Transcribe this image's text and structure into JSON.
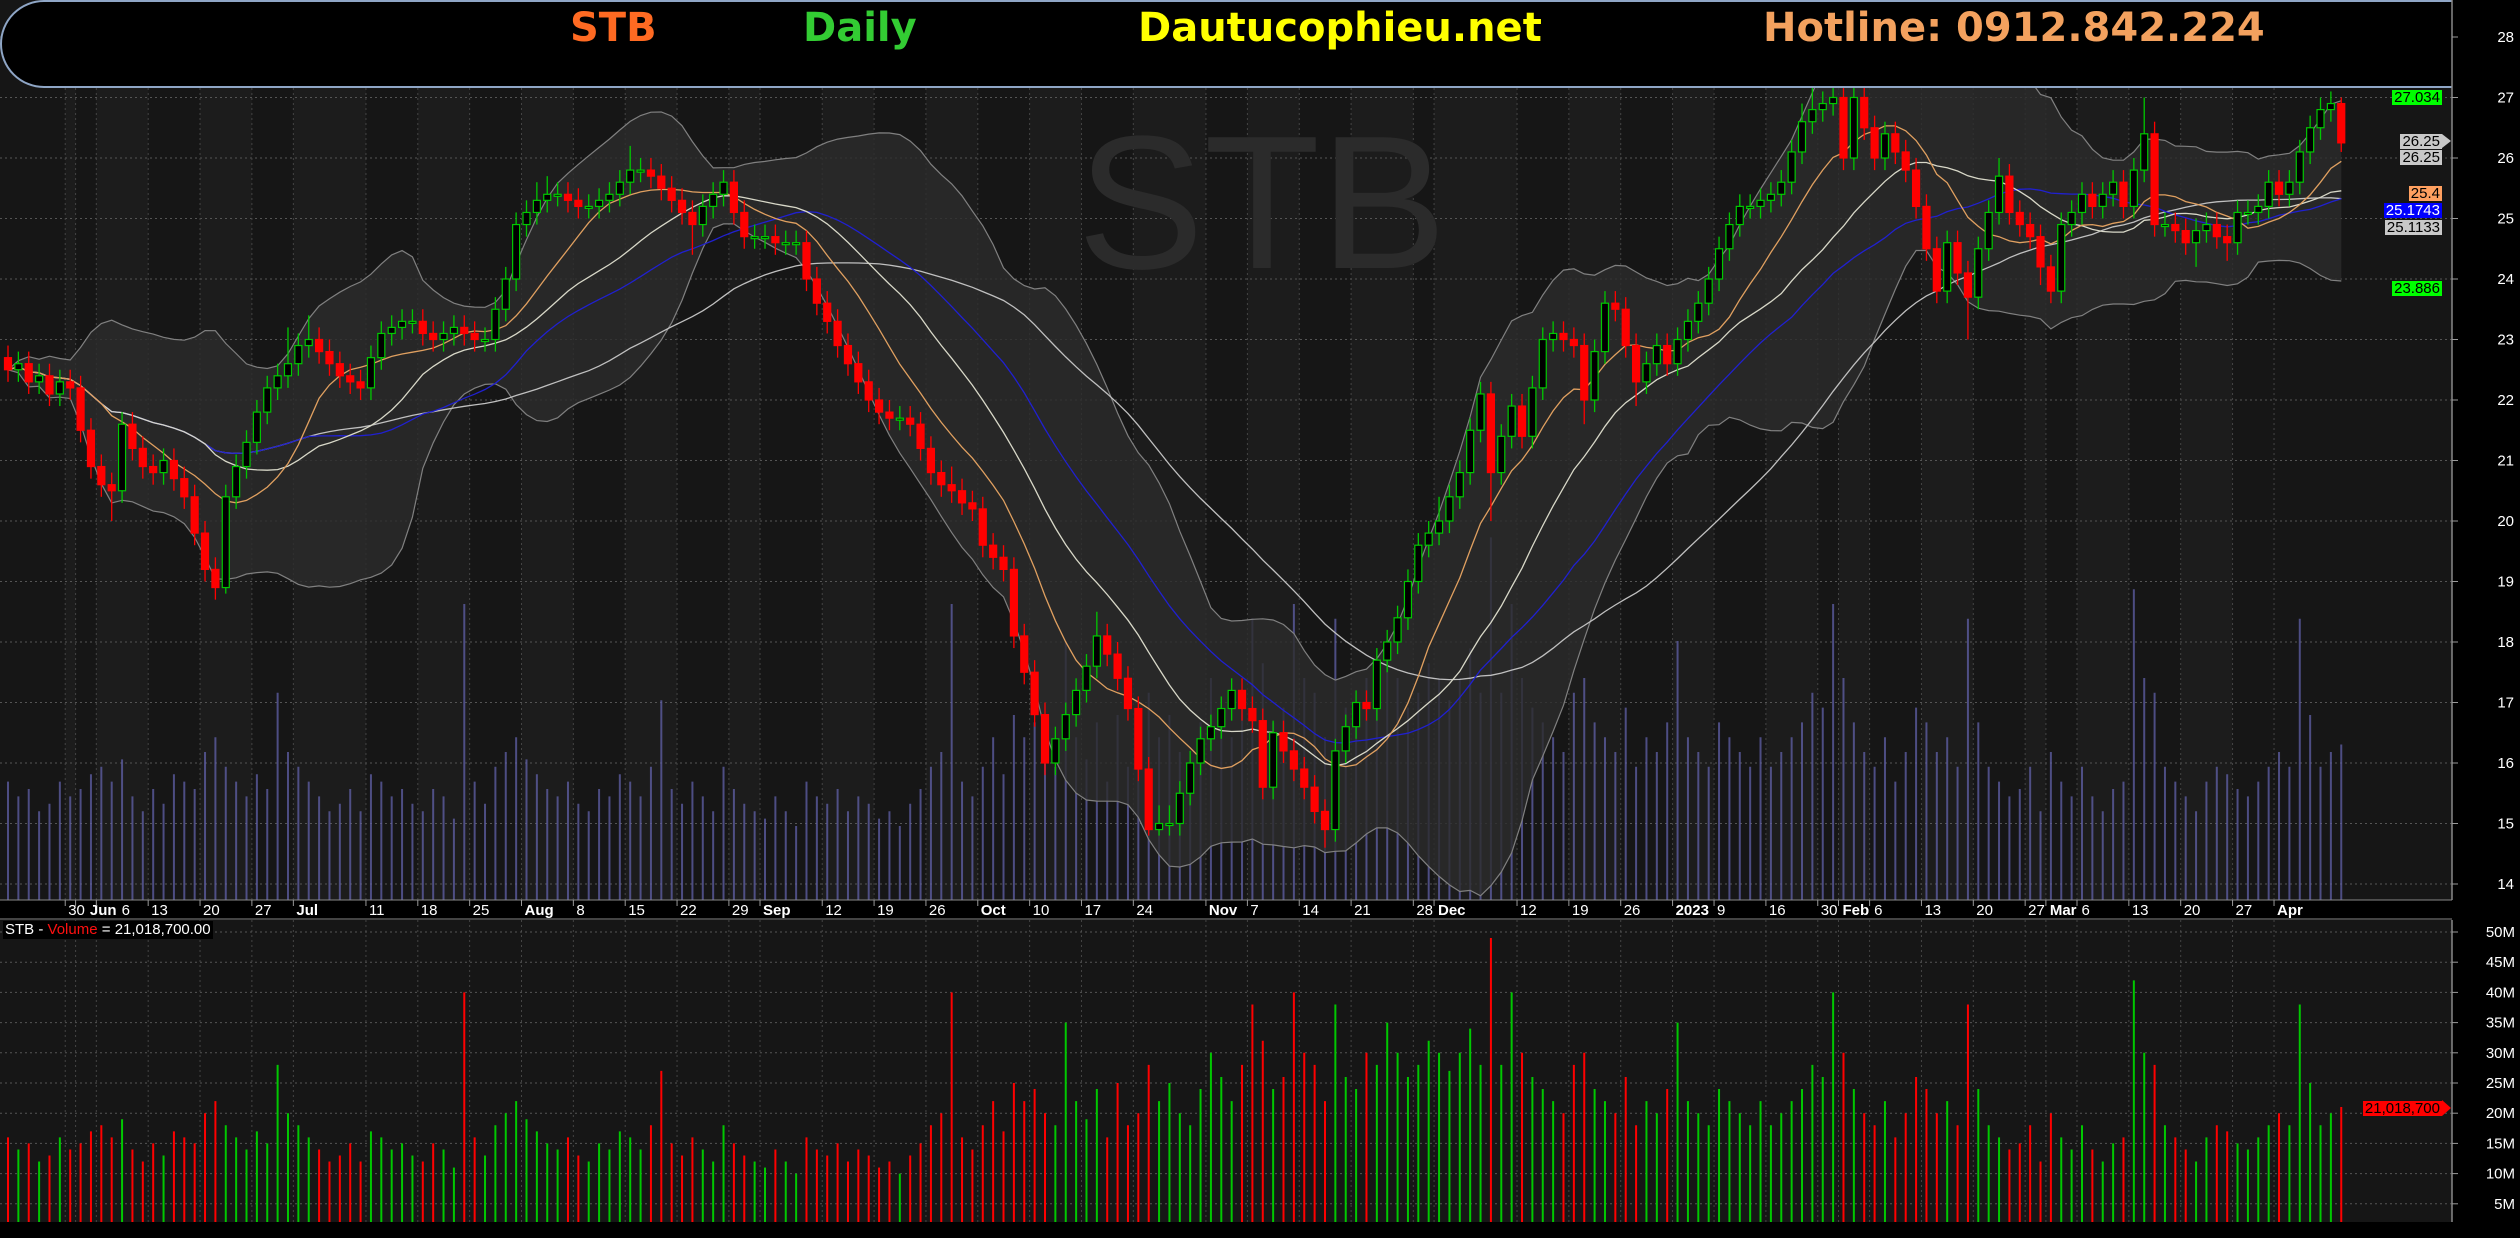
{
  "header": {
    "symbol": "STB",
    "interval": "Daily",
    "site": "Dautucophieu.net",
    "hotline": "Hotline: 0912.842.224",
    "colors": {
      "symbol": "#ff6a22",
      "interval": "#33cc33",
      "site": "#ffff00",
      "hotline": "#f3a15e"
    }
  },
  "watermark": "STB",
  "volume_readout": {
    "symbol": "STB",
    "separator": " - ",
    "label": "Volume",
    "equals": " = ",
    "value": "21,018,700.00"
  },
  "price_tags": {
    "bb_upper": "27.034",
    "last_close": "26.25",
    "last_close_2": "26.25",
    "ma_orange": "25.4",
    "ma_blue": "25.1743",
    "ma_gray": "25.1133",
    "bb_lower": "23.886",
    "volume_last": "21,018,700"
  },
  "chart_data": {
    "type": "candlestick",
    "symbol": "STB",
    "interval": "Daily",
    "colors": {
      "up": "#00c800",
      "down": "#ff0000",
      "ma_fast": "#e0a060",
      "ma_mid": "#d8d8c8",
      "ma_blue": "#2020d0",
      "ma_slow": "#c0c0c0",
      "bollinger": "#808080",
      "volume_overlay": "#6060a8"
    },
    "y_ticks": [
      14,
      15,
      16,
      17,
      18,
      19,
      20,
      21,
      22,
      23,
      24,
      25,
      26,
      27,
      28
    ],
    "ylim": [
      14,
      28
    ],
    "volume_ticks": [
      "5M",
      "10M",
      "15M",
      "20M",
      "25M",
      "30M",
      "35M",
      "40M",
      "45M",
      "50M"
    ],
    "volume_unit": "M",
    "x_ticks": [
      {
        "label": "30",
        "i": 6
      },
      {
        "label": "Jun",
        "i": 7,
        "bold": true
      },
      {
        "label": "6",
        "i": 9
      },
      {
        "label": "13",
        "i": 14
      },
      {
        "label": "20",
        "i": 19
      },
      {
        "label": "27",
        "i": 24
      },
      {
        "label": "Jul",
        "i": 28,
        "bold": true
      },
      {
        "label": "11",
        "i": 35
      },
      {
        "label": "18",
        "i": 40
      },
      {
        "label": "25",
        "i": 45
      },
      {
        "label": "Aug",
        "i": 50,
        "bold": true
      },
      {
        "label": "8",
        "i": 55
      },
      {
        "label": "15",
        "i": 60
      },
      {
        "label": "22",
        "i": 65
      },
      {
        "label": "29",
        "i": 70
      },
      {
        "label": "Sep",
        "i": 73,
        "bold": true
      },
      {
        "label": "12",
        "i": 79
      },
      {
        "label": "19",
        "i": 84
      },
      {
        "label": "26",
        "i": 89
      },
      {
        "label": "Oct",
        "i": 94,
        "bold": true
      },
      {
        "label": "10",
        "i": 99
      },
      {
        "label": "17",
        "i": 104
      },
      {
        "label": "24",
        "i": 109
      },
      {
        "label": "Nov",
        "i": 116,
        "bold": true
      },
      {
        "label": "7",
        "i": 120
      },
      {
        "label": "14",
        "i": 125
      },
      {
        "label": "21",
        "i": 130
      },
      {
        "label": "28",
        "i": 136
      },
      {
        "label": "Dec",
        "i": 138,
        "bold": true
      },
      {
        "label": "12",
        "i": 146
      },
      {
        "label": "19",
        "i": 151
      },
      {
        "label": "26",
        "i": 156
      },
      {
        "label": "2023",
        "i": 161,
        "bold": true
      },
      {
        "label": "9",
        "i": 165
      },
      {
        "label": "16",
        "i": 170
      },
      {
        "label": "30",
        "i": 175
      },
      {
        "label": "Feb",
        "i": 177,
        "bold": true
      },
      {
        "label": "6",
        "i": 180
      },
      {
        "label": "13",
        "i": 185
      },
      {
        "label": "20",
        "i": 190
      },
      {
        "label": "27",
        "i": 195
      },
      {
        "label": "Mar",
        "i": 197,
        "bold": true
      },
      {
        "label": "6",
        "i": 200
      },
      {
        "label": "13",
        "i": 205
      },
      {
        "label": "20",
        "i": 210
      },
      {
        "label": "27",
        "i": 215
      },
      {
        "label": "Apr",
        "i": 219,
        "bold": true
      }
    ],
    "open": [
      22.7,
      22.5,
      22.6,
      22.3,
      22.4,
      22.1,
      22.3,
      22.2,
      21.5,
      20.9,
      20.6,
      20.5,
      21.6,
      21.2,
      20.9,
      20.8,
      21.0,
      20.7,
      20.4,
      19.8,
      19.2,
      18.9,
      20.4,
      20.9,
      21.3,
      21.8,
      22.2,
      22.4,
      22.6,
      22.9,
      23.0,
      22.8,
      22.6,
      22.4,
      22.3,
      22.2,
      22.7,
      23.1,
      23.2,
      23.3,
      23.3,
      23.1,
      23.0,
      23.1,
      23.2,
      23.1,
      23.0,
      23.0,
      23.5,
      24.0,
      24.9,
      25.1,
      25.3,
      25.4,
      25.4,
      25.3,
      25.2,
      25.2,
      25.3,
      25.4,
      25.6,
      25.8,
      25.8,
      25.7,
      25.5,
      25.3,
      25.1,
      24.9,
      25.2,
      25.4,
      25.6,
      25.1,
      24.7,
      24.7,
      24.7,
      24.6,
      24.6,
      24.6,
      24.0,
      23.6,
      23.3,
      22.9,
      22.6,
      22.3,
      22.0,
      21.8,
      21.7,
      21.7,
      21.6,
      21.2,
      20.8,
      20.6,
      20.5,
      20.3,
      20.2,
      19.6,
      19.4,
      19.2,
      18.1,
      17.5,
      16.8,
      16.0,
      16.4,
      16.8,
      17.2,
      17.6,
      18.1,
      17.8,
      17.4,
      16.9,
      15.9,
      14.9,
      15.0,
      15.0,
      15.5,
      16.0,
      16.4,
      16.6,
      16.9,
      17.2,
      16.9,
      16.7,
      15.6,
      16.5,
      16.2,
      15.9,
      15.6,
      15.2,
      14.9,
      16.2,
      16.6,
      17.0,
      16.9,
      17.7,
      18.0,
      18.4,
      19.0,
      19.6,
      19.8,
      20.0,
      20.4,
      20.8,
      21.5,
      22.1,
      20.8,
      21.4,
      21.9,
      21.4,
      22.2,
      23.0,
      23.1,
      23.0,
      22.9,
      22.0,
      22.8,
      23.6,
      23.5,
      22.9,
      22.3,
      22.6,
      22.9,
      22.6,
      23.0,
      23.3,
      23.6,
      24.0,
      24.5,
      24.9,
      25.2,
      25.2,
      25.3,
      25.4,
      25.6,
      26.1,
      26.6,
      26.8,
      26.9,
      27.0,
      26.0,
      27.0,
      26.5,
      26.0,
      26.4,
      26.1,
      25.8,
      25.2,
      24.5,
      23.8,
      24.6,
      24.1,
      23.7,
      24.5,
      25.1,
      25.7,
      25.1,
      24.9,
      24.7,
      24.2,
      23.8,
      24.9,
      25.1,
      25.4,
      25.2,
      25.4,
      25.6,
      25.2,
      25.8,
      26.4,
      24.9,
      24.9,
      24.8,
      24.6,
      24.8,
      24.9,
      24.7,
      24.6,
      25.1,
      25.1,
      25.2,
      25.6,
      25.4,
      25.6,
      26.1,
      26.5,
      26.8,
      26.9
    ],
    "high": [
      22.9,
      22.8,
      22.8,
      22.6,
      22.6,
      22.5,
      22.5,
      22.4,
      21.7,
      21.1,
      20.8,
      21.8,
      21.8,
      21.4,
      21.1,
      21.2,
      21.2,
      20.9,
      20.6,
      20.0,
      19.4,
      20.6,
      21.1,
      21.5,
      22.0,
      22.4,
      22.6,
      23.2,
      23.1,
      23.4,
      23.2,
      23.0,
      22.8,
      22.6,
      22.5,
      22.9,
      23.3,
      23.4,
      23.5,
      23.5,
      23.5,
      23.3,
      23.3,
      23.4,
      23.4,
      23.3,
      23.2,
      23.7,
      24.2,
      25.1,
      25.3,
      25.6,
      25.7,
      25.6,
      25.6,
      25.5,
      25.4,
      25.5,
      25.6,
      25.8,
      26.2,
      26.0,
      26.0,
      25.9,
      25.7,
      25.5,
      25.3,
      25.4,
      25.6,
      25.8,
      25.8,
      25.3,
      24.9,
      24.9,
      24.9,
      24.8,
      24.8,
      24.8,
      24.2,
      23.8,
      23.5,
      23.1,
      22.8,
      22.5,
      22.2,
      22.0,
      21.9,
      21.9,
      21.8,
      21.4,
      21.0,
      20.9,
      20.7,
      20.5,
      20.4,
      19.8,
      19.6,
      19.4,
      18.3,
      17.7,
      17.0,
      16.6,
      17.0,
      17.4,
      17.8,
      18.5,
      18.3,
      18.0,
      17.6,
      17.1,
      16.1,
      15.3,
      15.3,
      15.7,
      16.2,
      16.6,
      16.8,
      17.1,
      17.4,
      17.4,
      17.1,
      16.9,
      16.7,
      16.7,
      16.4,
      16.1,
      15.8,
      15.4,
      16.4,
      16.8,
      17.2,
      17.2,
      17.9,
      18.2,
      18.6,
      19.2,
      19.8,
      20.0,
      20.4,
      20.6,
      21.0,
      21.7,
      22.3,
      22.3,
      21.6,
      22.1,
      22.1,
      22.4,
      23.2,
      23.3,
      23.3,
      23.2,
      23.1,
      23.0,
      23.8,
      23.8,
      23.7,
      23.1,
      22.8,
      23.1,
      23.1,
      23.2,
      23.5,
      23.8,
      24.2,
      24.7,
      25.1,
      25.4,
      25.4,
      25.5,
      25.6,
      25.8,
      26.3,
      26.9,
      27.3,
      27.1,
      27.2,
      27.2,
      27.2,
      27.2,
      26.7,
      26.6,
      26.6,
      26.3,
      26.0,
      25.4,
      24.7,
      24.8,
      24.8,
      24.3,
      24.7,
      25.3,
      26.0,
      25.9,
      25.3,
      25.1,
      24.9,
      24.4,
      25.1,
      25.3,
      25.6,
      25.6,
      25.6,
      25.8,
      25.8,
      26.0,
      27.0,
      26.6,
      25.1,
      25.1,
      25.0,
      25.0,
      25.1,
      25.1,
      24.9,
      25.3,
      25.3,
      25.4,
      25.8,
      25.8,
      25.8,
      26.3,
      26.7,
      27.0,
      27.1,
      27.0
    ],
    "low": [
      22.3,
      22.3,
      22.1,
      22.1,
      21.9,
      21.9,
      22.0,
      21.3,
      20.7,
      20.4,
      20.0,
      20.3,
      21.0,
      20.7,
      20.6,
      20.6,
      20.5,
      20.2,
      19.6,
      19.0,
      18.7,
      18.8,
      20.2,
      20.7,
      21.1,
      21.6,
      22.0,
      22.2,
      22.4,
      22.7,
      22.6,
      22.4,
      22.2,
      22.1,
      22.0,
      22.0,
      22.5,
      22.9,
      23.0,
      23.1,
      22.9,
      22.8,
      22.8,
      22.9,
      22.9,
      22.8,
      22.8,
      22.8,
      23.3,
      23.8,
      24.7,
      24.9,
      25.1,
      25.2,
      25.1,
      25.0,
      25.0,
      25.0,
      25.1,
      25.2,
      25.4,
      25.6,
      25.5,
      25.3,
      25.1,
      24.9,
      24.4,
      24.7,
      25.0,
      25.2,
      24.9,
      24.5,
      24.5,
      24.5,
      24.4,
      24.4,
      24.4,
      23.8,
      23.4,
      23.1,
      22.7,
      22.4,
      22.1,
      21.8,
      21.6,
      21.5,
      21.5,
      21.4,
      21.0,
      20.6,
      20.4,
      20.3,
      20.1,
      20.0,
      19.4,
      19.2,
      19.0,
      17.9,
      17.3,
      16.6,
      15.8,
      15.8,
      16.2,
      16.6,
      17.0,
      17.4,
      17.6,
      17.2,
      16.7,
      15.7,
      14.8,
      14.8,
      14.8,
      14.8,
      15.3,
      15.8,
      16.2,
      16.4,
      16.7,
      16.7,
      16.5,
      15.4,
      15.4,
      16.0,
      15.7,
      15.4,
      15.0,
      14.6,
      14.7,
      16.0,
      16.4,
      16.7,
      16.7,
      17.5,
      17.8,
      18.2,
      18.8,
      19.4,
      19.6,
      19.8,
      20.2,
      20.6,
      21.3,
      20.0,
      20.6,
      21.2,
      21.2,
      21.2,
      22.0,
      22.8,
      22.8,
      22.7,
      21.6,
      21.8,
      22.6,
      23.3,
      22.7,
      21.9,
      22.1,
      22.4,
      22.4,
      22.4,
      22.8,
      23.1,
      23.4,
      23.8,
      24.3,
      24.7,
      25.0,
      25.0,
      25.1,
      25.2,
      25.4,
      25.9,
      26.4,
      26.6,
      26.7,
      25.8,
      25.8,
      26.3,
      25.8,
      25.8,
      25.9,
      25.6,
      25.0,
      24.3,
      23.6,
      23.6,
      23.9,
      23.0,
      23.5,
      24.3,
      24.9,
      24.9,
      24.7,
      24.5,
      23.9,
      23.6,
      23.6,
      24.7,
      24.9,
      25.0,
      25.0,
      25.2,
      25.0,
      25.0,
      25.6,
      24.7,
      24.7,
      24.6,
      24.4,
      24.2,
      24.6,
      24.5,
      24.3,
      24.4,
      24.9,
      24.9,
      25.0,
      25.2,
      25.2,
      25.4,
      25.9,
      26.3,
      26.6,
      26.1
    ],
    "close": [
      22.5,
      22.6,
      22.3,
      22.4,
      22.1,
      22.3,
      22.2,
      21.5,
      20.9,
      20.6,
      20.5,
      21.6,
      21.2,
      20.9,
      20.8,
      21.0,
      20.7,
      20.4,
      19.8,
      19.2,
      18.9,
      20.4,
      20.9,
      21.3,
      21.8,
      22.2,
      22.4,
      22.6,
      22.9,
      23.0,
      22.8,
      22.6,
      22.4,
      22.3,
      22.2,
      22.7,
      23.1,
      23.2,
      23.3,
      23.3,
      23.1,
      23.0,
      23.1,
      23.2,
      23.1,
      23.0,
      23.0,
      23.5,
      24.0,
      24.9,
      25.1,
      25.3,
      25.4,
      25.4,
      25.3,
      25.2,
      25.2,
      25.3,
      25.4,
      25.6,
      25.8,
      25.8,
      25.7,
      25.5,
      25.3,
      25.1,
      24.9,
      25.2,
      25.4,
      25.6,
      25.1,
      24.7,
      24.7,
      24.7,
      24.6,
      24.6,
      24.6,
      24.0,
      23.6,
      23.3,
      22.9,
      22.6,
      22.3,
      22.0,
      21.8,
      21.7,
      21.7,
      21.6,
      21.2,
      20.8,
      20.6,
      20.5,
      20.3,
      20.2,
      19.6,
      19.4,
      19.2,
      18.1,
      17.5,
      16.8,
      16.0,
      16.4,
      16.8,
      17.2,
      17.6,
      18.1,
      17.8,
      17.4,
      16.9,
      15.9,
      14.9,
      15.0,
      15.0,
      15.5,
      16.0,
      16.4,
      16.6,
      16.9,
      17.2,
      16.9,
      16.7,
      15.6,
      16.5,
      16.2,
      15.9,
      15.6,
      15.2,
      14.9,
      16.2,
      16.6,
      17.0,
      16.9,
      17.7,
      18.0,
      18.4,
      19.0,
      19.6,
      19.8,
      20.0,
      20.4,
      20.8,
      21.5,
      22.1,
      20.8,
      21.4,
      21.9,
      21.4,
      22.2,
      23.0,
      23.1,
      23.0,
      22.9,
      22.0,
      22.8,
      23.6,
      23.5,
      22.9,
      22.3,
      22.6,
      22.9,
      22.6,
      23.0,
      23.3,
      23.6,
      24.0,
      24.5,
      24.9,
      25.2,
      25.2,
      25.3,
      25.4,
      25.6,
      26.1,
      26.6,
      26.8,
      26.9,
      27.0,
      26.0,
      27.0,
      26.5,
      26.0,
      26.4,
      26.1,
      25.8,
      25.2,
      24.5,
      23.8,
      24.6,
      24.1,
      23.7,
      24.5,
      25.1,
      25.7,
      25.1,
      24.9,
      24.7,
      24.2,
      23.8,
      24.9,
      25.1,
      25.4,
      25.2,
      25.4,
      25.6,
      25.2,
      25.8,
      26.4,
      24.9,
      24.9,
      24.8,
      24.6,
      24.8,
      24.9,
      24.7,
      24.6,
      25.1,
      25.1,
      25.2,
      25.6,
      25.4,
      25.6,
      26.1,
      26.5,
      26.8,
      26.9,
      26.25
    ],
    "volume": [
      16,
      14,
      15,
      12,
      13,
      16,
      14,
      15,
      17,
      18,
      16,
      19,
      14,
      12,
      15,
      13,
      17,
      16,
      15,
      20,
      22,
      18,
      16,
      14,
      17,
      15,
      28,
      20,
      18,
      16,
      14,
      12,
      13,
      15,
      12,
      17,
      16,
      14,
      15,
      13,
      12,
      15,
      14,
      11,
      40,
      16,
      13,
      18,
      20,
      22,
      19,
      17,
      15,
      14,
      16,
      13,
      12,
      15,
      14,
      17,
      16,
      14,
      18,
      27,
      15,
      13,
      16,
      14,
      12,
      18,
      15,
      13,
      12,
      11,
      14,
      12,
      10,
      16,
      14,
      13,
      15,
      12,
      14,
      13,
      11,
      12,
      10,
      13,
      15,
      18,
      20,
      40,
      16,
      14,
      18,
      22,
      17,
      25,
      22,
      24,
      20,
      18,
      35,
      22,
      19,
      24,
      16,
      25,
      18,
      20,
      28,
      22,
      25,
      20,
      18,
      24,
      30,
      26,
      22,
      28,
      38,
      32,
      24,
      26,
      40,
      30,
      28,
      22,
      38,
      26,
      24,
      30,
      28,
      35,
      30,
      26,
      28,
      32,
      30,
      27,
      30,
      34,
      28,
      49,
      28,
      40,
      30,
      26,
      24,
      22,
      20,
      28,
      30,
      24,
      22,
      20,
      26,
      18,
      22,
      20,
      24,
      35,
      22,
      20,
      18,
      24,
      22,
      20,
      18,
      22,
      18,
      20,
      22,
      24,
      28,
      26,
      40,
      30,
      24,
      20,
      18,
      22,
      16,
      20,
      26,
      24,
      20,
      22,
      18,
      38,
      24,
      18,
      16,
      14,
      15,
      18,
      12,
      20,
      16,
      14,
      18,
      14,
      12,
      15,
      16,
      42,
      30,
      28,
      18,
      16,
      14,
      12,
      16,
      18,
      17,
      15,
      14,
      16,
      18,
      20,
      18,
      38,
      25,
      18,
      20,
      21.0187
    ]
  }
}
